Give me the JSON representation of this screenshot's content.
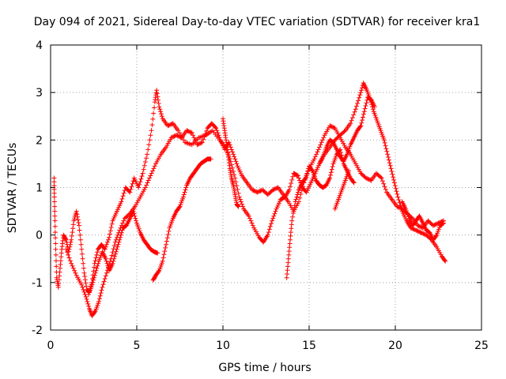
{
  "chart_data": {
    "type": "scatter",
    "title": "Day 094 of 2021, Sidereal Day-to-day VTEC variation (SDTVAR) for receiver kra1",
    "xlabel": "GPS time / hours",
    "ylabel": "SDTVAR / TECUs",
    "xlim": [
      0,
      25
    ],
    "ylim": [
      -2,
      4
    ],
    "xticks": [
      0,
      5,
      10,
      15,
      20,
      25
    ],
    "yticks": [
      -2,
      -1,
      0,
      1,
      2,
      3,
      4
    ],
    "grid": true,
    "marker": "+",
    "series": [
      {
        "name": "SDTVAR",
        "color": "#ff0000",
        "traces": [
          [
            [
              0.2,
              1.2
            ],
            [
              0.22,
              0.8
            ],
            [
              0.25,
              0.3
            ],
            [
              0.3,
              -0.3
            ],
            [
              0.35,
              -0.9
            ],
            [
              0.45,
              -1.1
            ],
            [
              0.55,
              -0.7
            ],
            [
              0.65,
              -0.3
            ],
            [
              0.75,
              0.0
            ],
            [
              0.9,
              -0.1
            ],
            [
              1.05,
              -0.35
            ],
            [
              1.2,
              -0.1
            ],
            [
              1.35,
              0.3
            ],
            [
              1.5,
              0.5
            ],
            [
              1.65,
              0.2
            ],
            [
              1.8,
              -0.3
            ],
            [
              1.95,
              -0.8
            ],
            [
              2.1,
              -1.15
            ],
            [
              2.25,
              -1.2
            ],
            [
              2.4,
              -1.0
            ],
            [
              2.55,
              -0.6
            ],
            [
              2.75,
              -0.3
            ],
            [
              2.95,
              -0.2
            ],
            [
              3.15,
              -0.3
            ],
            [
              3.4,
              -0.05
            ],
            [
              3.6,
              0.3
            ],
            [
              3.85,
              0.5
            ],
            [
              4.1,
              0.7
            ],
            [
              4.35,
              1.0
            ],
            [
              4.6,
              0.9
            ],
            [
              4.85,
              1.2
            ],
            [
              5.1,
              1.0
            ],
            [
              5.35,
              1.3
            ],
            [
              5.6,
              1.7
            ],
            [
              5.85,
              2.2
            ],
            [
              6.05,
              2.8
            ],
            [
              6.15,
              3.05
            ],
            [
              6.3,
              2.7
            ],
            [
              6.5,
              2.45
            ],
            [
              6.8,
              2.3
            ],
            [
              7.1,
              2.35
            ],
            [
              7.4,
              2.2
            ],
            [
              7.8,
              1.95
            ],
            [
              8.2,
              1.9
            ],
            [
              8.6,
              2.05
            ],
            [
              9.0,
              2.1
            ],
            [
              9.4,
              2.2
            ],
            [
              9.8,
              2.0
            ],
            [
              10.15,
              1.85
            ],
            [
              10.45,
              1.55
            ],
            [
              10.7,
              1.2
            ],
            [
              10.95,
              0.8
            ],
            [
              11.2,
              0.55
            ],
            [
              11.5,
              0.4
            ],
            [
              11.8,
              0.15
            ],
            [
              12.1,
              -0.05
            ],
            [
              12.35,
              -0.15
            ],
            [
              12.6,
              0.0
            ],
            [
              12.85,
              0.3
            ],
            [
              13.1,
              0.55
            ],
            [
              13.35,
              0.75
            ],
            [
              13.6,
              0.8
            ],
            [
              13.85,
              0.95
            ],
            [
              14.1,
              1.3
            ],
            [
              14.35,
              1.25
            ],
            [
              14.6,
              1.0
            ],
            [
              14.85,
              0.9
            ],
            [
              15.1,
              1.1
            ],
            [
              15.35,
              1.3
            ],
            [
              15.6,
              1.5
            ],
            [
              15.9,
              1.7
            ],
            [
              16.2,
              1.85
            ],
            [
              16.5,
              2.0
            ],
            [
              16.8,
              2.1
            ],
            [
              17.1,
              2.2
            ],
            [
              17.4,
              2.35
            ],
            [
              17.7,
              2.65
            ],
            [
              17.95,
              2.95
            ],
            [
              18.15,
              3.2
            ],
            [
              18.35,
              3.05
            ],
            [
              18.55,
              2.85
            ],
            [
              18.75,
              2.6
            ],
            [
              18.95,
              2.4
            ],
            [
              19.15,
              2.2
            ],
            [
              19.35,
              2.0
            ],
            [
              19.55,
              1.7
            ],
            [
              19.75,
              1.4
            ],
            [
              19.95,
              1.1
            ],
            [
              20.15,
              0.8
            ],
            [
              20.4,
              0.5
            ],
            [
              20.65,
              0.3
            ],
            [
              20.9,
              0.15
            ],
            [
              21.2,
              0.1
            ],
            [
              21.5,
              0.05
            ],
            [
              21.8,
              0.0
            ],
            [
              22.1,
              -0.1
            ],
            [
              22.4,
              -0.25
            ],
            [
              22.7,
              -0.45
            ],
            [
              22.9,
              -0.55
            ]
          ],
          [
            [
              0.9,
              -0.3
            ],
            [
              1.2,
              -0.6
            ],
            [
              1.5,
              -0.85
            ],
            [
              1.8,
              -1.05
            ],
            [
              2.05,
              -1.3
            ],
            [
              2.25,
              -1.55
            ],
            [
              2.4,
              -1.7
            ],
            [
              2.6,
              -1.6
            ],
            [
              2.8,
              -1.4
            ],
            [
              3.0,
              -1.1
            ],
            [
              3.25,
              -0.8
            ],
            [
              3.5,
              -0.5
            ],
            [
              3.75,
              -0.15
            ],
            [
              4.0,
              0.1
            ],
            [
              4.3,
              0.35
            ],
            [
              4.6,
              0.45
            ],
            [
              4.9,
              0.6
            ],
            [
              5.2,
              0.8
            ],
            [
              5.5,
              1.0
            ],
            [
              5.8,
              1.25
            ],
            [
              6.1,
              1.5
            ],
            [
              6.4,
              1.7
            ],
            [
              6.7,
              1.85
            ],
            [
              7.0,
              2.05
            ],
            [
              7.3,
              2.1
            ],
            [
              7.6,
              2.05
            ],
            [
              7.9,
              2.2
            ],
            [
              8.2,
              2.15
            ],
            [
              8.5,
              1.9
            ],
            [
              8.8,
              1.95
            ],
            [
              9.1,
              2.25
            ],
            [
              9.35,
              2.35
            ],
            [
              9.6,
              2.25
            ],
            [
              9.85,
              2.0
            ],
            [
              10.1,
              1.8
            ],
            [
              10.35,
              1.95
            ],
            [
              10.6,
              1.7
            ],
            [
              10.85,
              1.45
            ],
            [
              11.1,
              1.25
            ],
            [
              11.4,
              1.1
            ],
            [
              11.7,
              0.95
            ],
            [
              12.0,
              0.9
            ],
            [
              12.3,
              0.95
            ],
            [
              12.6,
              0.85
            ],
            [
              12.9,
              0.95
            ],
            [
              13.2,
              1.0
            ],
            [
              13.5,
              0.85
            ],
            [
              13.8,
              0.7
            ],
            [
              14.1,
              0.5
            ],
            [
              14.4,
              0.7
            ],
            [
              14.7,
              1.1
            ],
            [
              15.0,
              1.4
            ],
            [
              15.3,
              1.6
            ],
            [
              15.6,
              1.85
            ],
            [
              15.9,
              2.1
            ],
            [
              16.2,
              2.3
            ],
            [
              16.5,
              2.25
            ],
            [
              16.8,
              2.05
            ],
            [
              17.1,
              1.85
            ],
            [
              17.4,
              1.7
            ],
            [
              17.7,
              1.5
            ],
            [
              18.0,
              1.3
            ],
            [
              18.3,
              1.2
            ],
            [
              18.6,
              1.15
            ],
            [
              18.9,
              1.3
            ],
            [
              19.2,
              1.2
            ],
            [
              19.5,
              0.9
            ],
            [
              19.8,
              0.75
            ],
            [
              20.1,
              0.6
            ],
            [
              20.4,
              0.55
            ],
            [
              20.7,
              0.45
            ],
            [
              21.0,
              0.35
            ],
            [
              21.3,
              0.2
            ],
            [
              21.6,
              0.15
            ],
            [
              21.9,
              0.3
            ],
            [
              22.2,
              0.2
            ],
            [
              22.5,
              0.25
            ],
            [
              22.8,
              0.3
            ]
          ],
          [
            [
              2.2,
              -1.25
            ],
            [
              2.4,
              -1.05
            ],
            [
              2.6,
              -0.8
            ],
            [
              2.8,
              -0.55
            ],
            [
              3.0,
              -0.35
            ],
            [
              3.2,
              -0.5
            ],
            [
              3.4,
              -0.75
            ],
            [
              3.6,
              -0.6
            ],
            [
              3.8,
              -0.35
            ],
            [
              4.0,
              -0.1
            ],
            [
              4.2,
              0.15
            ],
            [
              4.4,
              0.2
            ],
            [
              4.6,
              0.35
            ],
            [
              4.8,
              0.5
            ],
            [
              5.0,
              0.25
            ],
            [
              5.2,
              0.05
            ],
            [
              5.4,
              -0.1
            ],
            [
              5.6,
              -0.2
            ],
            [
              5.8,
              -0.3
            ],
            [
              6.0,
              -0.35
            ],
            [
              6.2,
              -0.38
            ]
          ],
          [
            [
              5.95,
              -0.95
            ],
            [
              6.1,
              -0.85
            ],
            [
              6.3,
              -0.75
            ],
            [
              6.5,
              -0.55
            ],
            [
              6.7,
              -0.2
            ],
            [
              6.9,
              0.15
            ],
            [
              7.1,
              0.35
            ],
            [
              7.3,
              0.5
            ],
            [
              7.5,
              0.6
            ],
            [
              7.7,
              0.8
            ],
            [
              7.9,
              1.05
            ],
            [
              8.1,
              1.2
            ],
            [
              8.3,
              1.3
            ],
            [
              8.5,
              1.4
            ],
            [
              8.7,
              1.5
            ],
            [
              8.9,
              1.55
            ],
            [
              9.1,
              1.6
            ],
            [
              9.3,
              1.6
            ]
          ],
          [
            [
              13.7,
              -0.9
            ],
            [
              13.8,
              -0.5
            ],
            [
              13.9,
              -0.1
            ],
            [
              14.0,
              0.3
            ],
            [
              14.2,
              0.7
            ],
            [
              14.4,
              0.95
            ],
            [
              14.6,
              1.1
            ],
            [
              14.8,
              1.2
            ],
            [
              15.0,
              1.45
            ],
            [
              15.2,
              1.35
            ],
            [
              15.4,
              1.15
            ],
            [
              15.6,
              1.05
            ],
            [
              15.8,
              1.0
            ],
            [
              16.0,
              1.05
            ],
            [
              16.2,
              1.2
            ],
            [
              16.4,
              1.5
            ],
            [
              16.6,
              1.7
            ],
            [
              16.8,
              1.8
            ],
            [
              17.0,
              1.5
            ],
            [
              17.2,
              1.35
            ],
            [
              17.4,
              1.2
            ],
            [
              17.6,
              1.1
            ]
          ],
          [
            [
              15.6,
              1.5
            ],
            [
              15.8,
              1.65
            ],
            [
              16.0,
              1.85
            ],
            [
              16.2,
              2.0
            ],
            [
              16.4,
              1.95
            ],
            [
              16.6,
              1.8
            ],
            [
              16.8,
              1.65
            ],
            [
              17.0,
              1.55
            ],
            [
              17.2,
              1.7
            ],
            [
              17.4,
              1.9
            ],
            [
              17.6,
              2.05
            ],
            [
              17.8,
              2.2
            ],
            [
              18.0,
              2.3
            ],
            [
              18.2,
              2.6
            ],
            [
              18.4,
              2.9
            ],
            [
              18.6,
              2.85
            ],
            [
              18.8,
              2.7
            ]
          ],
          [
            [
              10.0,
              2.45
            ],
            [
              10.1,
              2.2
            ],
            [
              10.2,
              1.95
            ],
            [
              10.3,
              1.7
            ],
            [
              10.4,
              1.4
            ],
            [
              10.5,
              1.2
            ],
            [
              10.6,
              1.05
            ],
            [
              10.7,
              0.85
            ],
            [
              10.8,
              0.65
            ],
            [
              10.9,
              0.6
            ]
          ],
          [
            [
              16.5,
              0.55
            ],
            [
              16.7,
              0.75
            ],
            [
              16.9,
              0.95
            ],
            [
              17.1,
              1.15
            ],
            [
              17.3,
              1.35
            ]
          ],
          [
            [
              20.4,
              0.7
            ],
            [
              20.6,
              0.55
            ],
            [
              20.8,
              0.35
            ],
            [
              21.0,
              0.2
            ],
            [
              21.2,
              0.3
            ],
            [
              21.4,
              0.4
            ],
            [
              21.6,
              0.25
            ],
            [
              21.8,
              0.1
            ],
            [
              22.0,
              0.05
            ],
            [
              22.2,
              -0.1
            ],
            [
              22.4,
              0.0
            ],
            [
              22.6,
              0.2
            ],
            [
              22.8,
              0.25
            ]
          ]
        ]
      }
    ]
  }
}
